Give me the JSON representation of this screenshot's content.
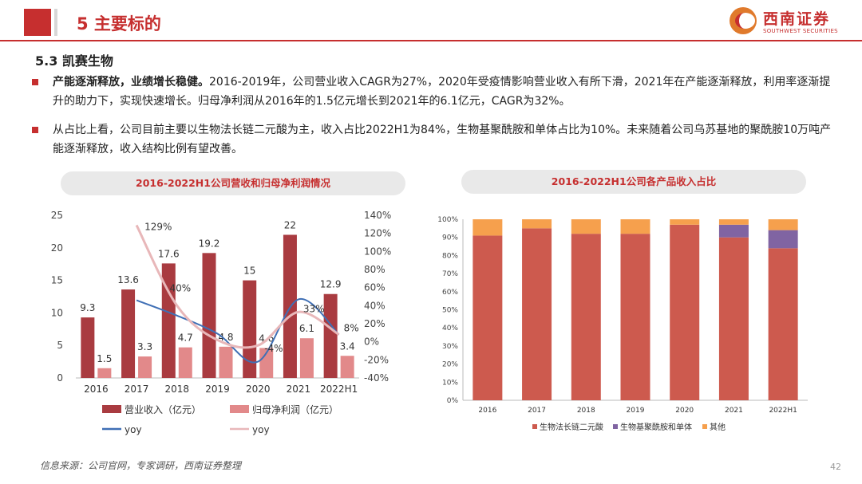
{
  "header": {
    "title": "5 主要标的"
  },
  "logo": {
    "name_cn": "西南证券",
    "name_en": "SOUTHWEST SECURITIES"
  },
  "section_title": "5.3 凯赛生物",
  "bullets": [
    {
      "bold": "产能逐渐释放，业绩增长稳健。",
      "text": "2016-2019年，公司营业收入CAGR为27%，2020年受疫情影响营业收入有所下滑，2021年在产能逐渐释放，利用率逐渐提升的助力下，实现快速增长。归母净利润从2016年的1.5亿元增长到2021年的6.1亿元，CAGR为32%。"
    },
    {
      "bold": "",
      "text": "从占比上看，公司目前主要以生物法长链二元酸为主，收入占比2022H1为84%，生物基聚酰胺和单体占比为10%。未来随着公司乌苏基地的聚酰胺10万吨产能逐渐释放，收入结构比例有望改善。"
    }
  ],
  "colors": {
    "accent": "#c62f2f",
    "revenue": "#a93b40",
    "profit": "#e2898a",
    "rev_yoy": "#3f6fb5",
    "profit_yoy": "#e8b7b9",
    "chain_acid": "#cd5a4e",
    "polyamide": "#8064a2",
    "other": "#f6a04d"
  },
  "chart_data": [
    {
      "type": "bar",
      "title": "2016-2022H1公司营收和归母净利润情况",
      "categories": [
        "2016",
        "2017",
        "2018",
        "2019",
        "2020",
        "2021",
        "2022H1"
      ],
      "series": [
        {
          "name": "营业收入（亿元）",
          "axis": "left",
          "values": [
            9.3,
            13.6,
            17.6,
            19.2,
            15,
            22,
            12.9
          ],
          "labels": [
            "9.3",
            "13.6",
            "17.6",
            "19.2",
            "15",
            "22",
            "12.9"
          ]
        },
        {
          "name": "归母净利润（亿元）",
          "axis": "left",
          "values": [
            1.5,
            3.3,
            4.7,
            4.8,
            4.6,
            6.1,
            3.4
          ],
          "labels": [
            "1.5",
            "3.3",
            "4.7",
            "4.8",
            "4.6",
            "6.1",
            "3.4"
          ]
        },
        {
          "name": "yoy",
          "type": "line",
          "axis": "right",
          "values": [
            null,
            46,
            29,
            9,
            -22,
            47,
            8
          ]
        },
        {
          "name": "yoy",
          "type": "line",
          "axis": "right",
          "values": [
            null,
            129,
            40,
            2,
            -4,
            33,
            8
          ],
          "labels": [
            "",
            "129%",
            "40%",
            "",
            "-4%",
            "33%",
            "8%"
          ]
        }
      ],
      "left_axis": {
        "ylim": [
          0,
          25
        ],
        "ticks": [
          "0",
          "5",
          "10",
          "15",
          "20",
          "25"
        ]
      },
      "right_axis": {
        "ylim": [
          -40,
          140
        ],
        "ticks": [
          "-40%",
          "-20%",
          "0%",
          "20%",
          "40%",
          "60%",
          "80%",
          "100%",
          "120%",
          "140%"
        ]
      },
      "legend": [
        "营业收入（亿元）",
        "归母净利润（亿元）",
        "yoy",
        "yoy"
      ]
    },
    {
      "type": "bar",
      "stacked": true,
      "title": "2016-2022H1公司各产品收入占比",
      "categories": [
        "2016",
        "2017",
        "2018",
        "2019",
        "2020",
        "2021",
        "2022H1"
      ],
      "series": [
        {
          "name": "生物法长链二元酸",
          "values": [
            91,
            95,
            92,
            92,
            97,
            90,
            84
          ]
        },
        {
          "name": "生物基聚酰胺和单体",
          "values": [
            0,
            0,
            0,
            0,
            0,
            7,
            10
          ]
        },
        {
          "name": "其他",
          "values": [
            9,
            5,
            8,
            8,
            3,
            3,
            6
          ]
        }
      ],
      "ylim": [
        0,
        100
      ],
      "ticks": [
        "0%",
        "10%",
        "20%",
        "30%",
        "40%",
        "50%",
        "60%",
        "70%",
        "80%",
        "90%",
        "100%"
      ],
      "legend": [
        "生物法长链二元酸",
        "生物基聚酰胺和单体",
        "其他"
      ]
    }
  ],
  "source": "信息来源：公司官网，专家调研，西南证券整理",
  "page_number": "42"
}
